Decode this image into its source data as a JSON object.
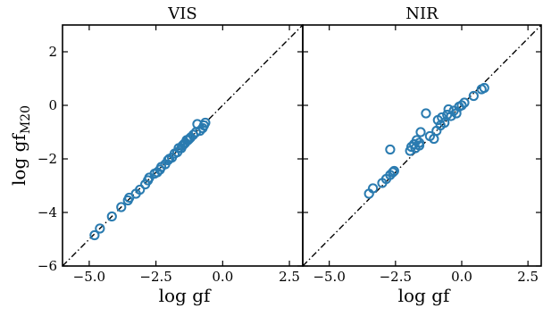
{
  "chart_data": [
    {
      "type": "scatter",
      "title": "VIS",
      "xlabel": "log gf",
      "ylabel": "log gf",
      "ylabel_subscript": "M20",
      "xlim": [
        -6.0,
        3.0
      ],
      "ylim": [
        -6.0,
        3.0
      ],
      "xticks": [
        -5.0,
        -2.5,
        0.0,
        2.5
      ],
      "xtick_labels": [
        "−5.0",
        "−2.5",
        "0.0",
        "2.5"
      ],
      "yticks": [
        -6,
        -4,
        -2,
        0,
        2
      ],
      "ytick_labels": [
        "−6",
        "−4",
        "−2",
        "0",
        "2"
      ],
      "reference_line": "y = x",
      "marker_color": "#2a7bb0",
      "x": [
        -4.8,
        -4.6,
        -4.15,
        -3.8,
        -3.55,
        -3.5,
        -3.25,
        -3.1,
        -2.9,
        -2.8,
        -2.75,
        -2.55,
        -2.45,
        -2.35,
        -2.3,
        -2.15,
        -2.05,
        -2.0,
        -1.9,
        -1.8,
        -1.7,
        -1.65,
        -1.55,
        -1.5,
        -1.45,
        -1.4,
        -1.35,
        -1.3,
        -1.25,
        -1.2,
        -1.1,
        -1.0,
        -0.95,
        -0.85,
        -0.75,
        -0.7,
        -0.65
      ],
      "y": [
        -4.85,
        -4.6,
        -4.15,
        -3.8,
        -3.55,
        -3.45,
        -3.3,
        -3.15,
        -2.95,
        -2.8,
        -2.7,
        -2.55,
        -2.5,
        -2.4,
        -2.3,
        -2.2,
        -2.05,
        -2.0,
        -1.95,
        -1.8,
        -1.75,
        -1.6,
        -1.6,
        -1.5,
        -1.45,
        -1.4,
        -1.3,
        -1.3,
        -1.25,
        -1.2,
        -1.1,
        -1.0,
        -0.7,
        -0.95,
        -0.85,
        -0.75,
        -0.65
      ]
    },
    {
      "type": "scatter",
      "title": "NIR",
      "xlabel": "log gf",
      "xlim": [
        -6.0,
        3.0
      ],
      "ylim": [
        -6.0,
        3.0
      ],
      "xticks": [
        -5.0,
        -2.5,
        0.0,
        2.5
      ],
      "xtick_labels": [
        "−5.0",
        "−2.5",
        "0.0",
        "2.5"
      ],
      "yticks": [
        -6,
        -4,
        -2,
        0,
        2
      ],
      "reference_line": "y = x",
      "marker_color": "#2a7bb0",
      "x": [
        -3.5,
        -3.35,
        -3.0,
        -2.85,
        -2.7,
        -2.6,
        -2.55,
        -2.7,
        -1.95,
        -1.9,
        -1.8,
        -1.75,
        -1.7,
        -1.6,
        -1.55,
        -1.6,
        -1.35,
        -1.2,
        -1.05,
        -0.95,
        -0.9,
        -0.8,
        -0.75,
        -0.65,
        -0.55,
        -0.5,
        -0.4,
        -0.3,
        -0.2,
        -0.1,
        0.0,
        0.1,
        0.45,
        0.75,
        0.85
      ],
      "y": [
        -3.3,
        -3.1,
        -2.9,
        -2.75,
        -2.6,
        -2.5,
        -2.45,
        -1.65,
        -1.7,
        -1.55,
        -1.45,
        -1.6,
        -1.3,
        -1.5,
        -1.0,
        -1.4,
        -0.3,
        -1.15,
        -1.25,
        -0.95,
        -0.55,
        -0.75,
        -0.45,
        -0.65,
        -0.35,
        -0.15,
        -0.4,
        -0.2,
        -0.3,
        -0.05,
        0.0,
        0.1,
        0.35,
        0.6,
        0.65
      ]
    }
  ]
}
